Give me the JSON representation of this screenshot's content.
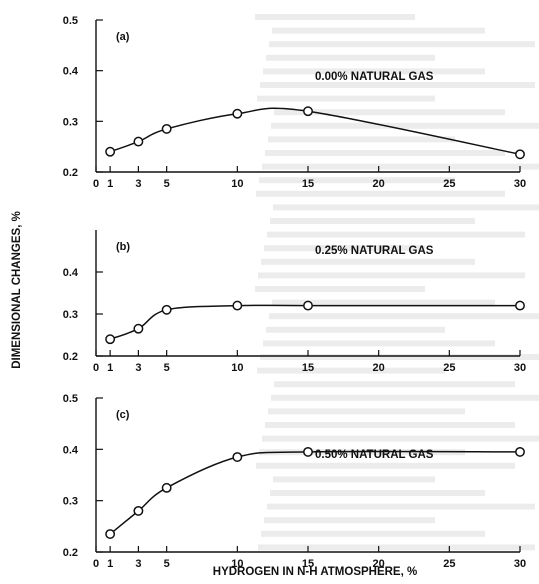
{
  "chart_data": {
    "type": "line",
    "xlabel": "HYDROGEN IN N-H ATMOSPHERE, %",
    "ylabel": "DIMENSIONAL CHANGES, %",
    "xlim": [
      0,
      30
    ],
    "x_ticks": [
      "0",
      "1",
      "3",
      "5",
      "10",
      "15",
      "20",
      "25",
      "30"
    ],
    "panels": [
      {
        "label": "(b)",
        "series_label": "0.25% NATURAL GAS",
        "ylim": [
          0.2,
          0.5
        ],
        "y_ticks": [
          "0.2",
          "0.3",
          "0.4"
        ],
        "x": [
          1,
          3,
          5,
          10,
          15,
          30
        ],
        "y": [
          0.24,
          0.265,
          0.31,
          0.32,
          0.32,
          0.32
        ]
      },
      {
        "label": "(a)",
        "series_label": "0.00% NATURAL GAS",
        "ylim": [
          0.2,
          0.5
        ],
        "y_ticks": [
          "0.2",
          "0.3",
          "0.4",
          "0.5"
        ],
        "x": [
          1,
          3,
          5,
          10,
          15,
          30
        ],
        "y": [
          0.24,
          0.26,
          0.285,
          0.315,
          0.32,
          0.235
        ]
      },
      {
        "label": "(c)",
        "series_label": "0.50% NATURAL GAS",
        "ylim": [
          0.2,
          0.5
        ],
        "y_ticks": [
          "0.2",
          "0.3",
          "0.4",
          "0.5"
        ],
        "x": [
          1,
          3,
          5,
          10,
          15,
          30
        ],
        "y": [
          0.235,
          0.28,
          0.325,
          0.385,
          0.395,
          0.395
        ]
      }
    ]
  }
}
